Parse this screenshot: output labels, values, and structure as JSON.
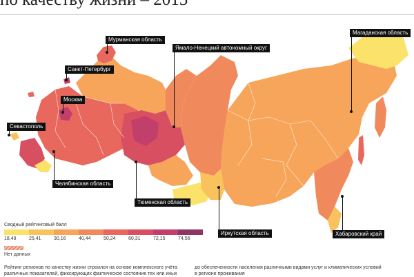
{
  "title": "по качеству жизни – 2015",
  "legend": {
    "title": "Сводный рейтинговый балл",
    "ticks": [
      "18,49",
      "25,41",
      "30,16",
      "40,44",
      "50,24",
      "60,31",
      "72,15",
      "74,56"
    ],
    "colors": [
      "#fbe26a",
      "#f9c25c",
      "#f6a55b",
      "#f08a5c",
      "#e8685e",
      "#d94f62",
      "#c23f6c",
      "#8e3564"
    ],
    "nodata_label": "Нет данных",
    "nodata_color": "#f3a08a"
  },
  "labels": {
    "murmansk": "Мурманская область",
    "spb": "Санкт-Петербург",
    "moscow": "Москва",
    "sevastopol": "Севастополь",
    "chelyabinsk": "Челябинская область",
    "tyumen": "Тюменская область",
    "yamal": "Ямало-Ненецкий автономный округ",
    "irkutsk": "Иркутская область",
    "magadan": "Магаданская область",
    "khabarovsk": "Хабаровский край"
  },
  "footnotes": {
    "left": "Рейтинг регионов по качеству жизни строился на основе комплексного учёта различных показателей, фиксирующих фактическое состояние тех или иных",
    "right": "до обеспеченности населения различными видами услуг и климатических условий в регионе проживания"
  }
}
